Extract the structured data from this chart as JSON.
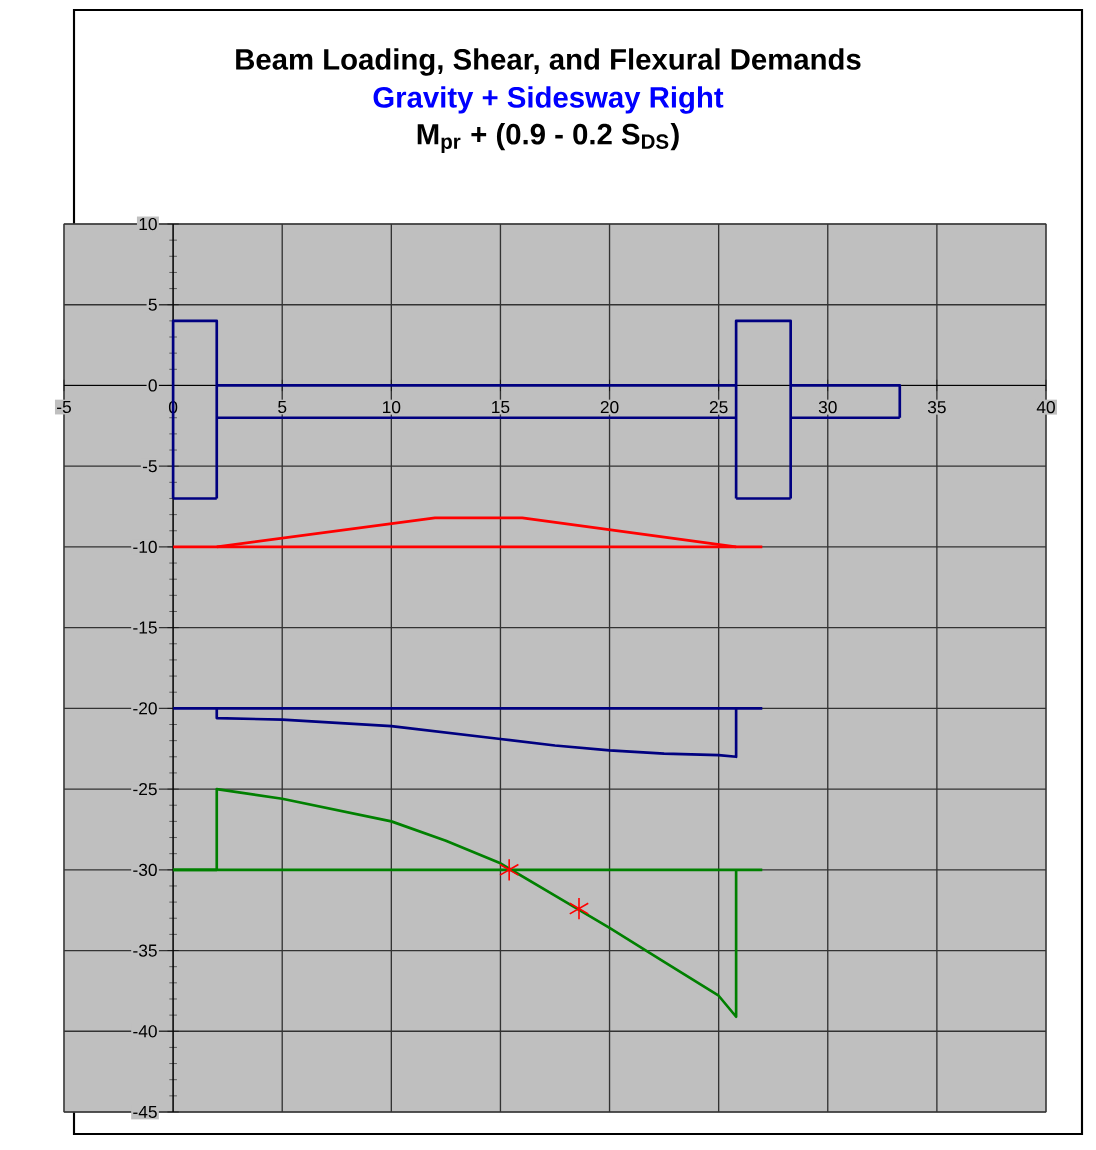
{
  "chart_data": {
    "type": "line",
    "title": "Beam Loading, Shear, and Flexural Demands",
    "subtitle": "Gravity + Sidesway Right",
    "annotations": [
      "M$_{pr}$ + (0.9 - 0.2 S$_{DS}$)"
    ],
    "series": [
      {
        "color": "#000080",
        "x": [
          0,
          0,
          2,
          2
        ],
        "values": [
          -7,
          4,
          4,
          -7
        ]
      },
      {
        "color": "#000080",
        "x": [
          0,
          2
        ],
        "values": [
          -7,
          -7
        ]
      },
      {
        "color": "#000080",
        "x": [
          25.8,
          25.8,
          28.3,
          28.3
        ],
        "values": [
          -7,
          4,
          4,
          -7
        ]
      },
      {
        "color": "#000080",
        "x": [
          25.8,
          28.3
        ],
        "values": [
          -7,
          -7
        ]
      },
      {
        "color": "#000080",
        "x": [
          2,
          25.8
        ],
        "values": [
          0,
          0
        ]
      },
      {
        "color": "#000080",
        "x": [
          2,
          25.8
        ],
        "values": [
          -2,
          -2
        ]
      },
      {
        "color": "#000080",
        "x": [
          28.3,
          33.3,
          33.3
        ],
        "values": [
          0,
          0,
          -2
        ]
      },
      {
        "color": "#000080",
        "x": [
          28.3,
          33.3
        ],
        "values": [
          -2,
          -2
        ]
      },
      {
        "color": "#ff0000",
        "x": [
          0,
          27
        ],
        "values": [
          -10,
          -10
        ]
      },
      {
        "color": "#ff0000",
        "x": [
          2,
          12,
          16,
          25.8
        ],
        "values": [
          -10,
          -8.2,
          -8.2,
          -10
        ]
      },
      {
        "color": "#000080",
        "x": [
          0,
          27
        ],
        "values": [
          -20,
          -20
        ]
      },
      {
        "color": "#000080",
        "x": [
          2,
          2,
          5,
          10,
          12.5,
          15,
          17.5,
          20,
          22.5,
          25,
          25.8,
          25.8
        ],
        "values": [
          -20,
          -20.6,
          -20.7,
          -21.1,
          -21.5,
          -21.9,
          -22.3,
          -22.6,
          -22.8,
          -22.9,
          -23,
          -20
        ]
      },
      {
        "color": "#008000",
        "x": [
          0,
          27
        ],
        "values": [
          -30,
          -30
        ]
      },
      {
        "color": "#008000",
        "x": [
          0,
          2,
          2,
          5,
          10,
          12.5,
          15,
          17.5,
          20,
          22.5,
          25,
          25.8,
          25.8
        ],
        "values": [
          -30,
          -30,
          -25,
          -25.6,
          -27,
          -28.2,
          -29.6,
          -31.6,
          -33.6,
          -35.7,
          -37.8,
          -39.1,
          -30
        ]
      },
      {
        "type": "scatter",
        "color": "#ff0000",
        "marker": "cross",
        "x": [
          15.4,
          18.6
        ],
        "values": [
          -30,
          -32.4
        ]
      }
    ],
    "xlim": [
      -5,
      40
    ],
    "ylim": [
      -45,
      10
    ],
    "xticks": [
      -5,
      0,
      5,
      10,
      15,
      20,
      25,
      30,
      35,
      40
    ],
    "yticks": [
      -45,
      -40,
      -35,
      -30,
      -25,
      -20,
      -15,
      -10,
      -5,
      0,
      5,
      10
    ],
    "grid": true
  }
}
